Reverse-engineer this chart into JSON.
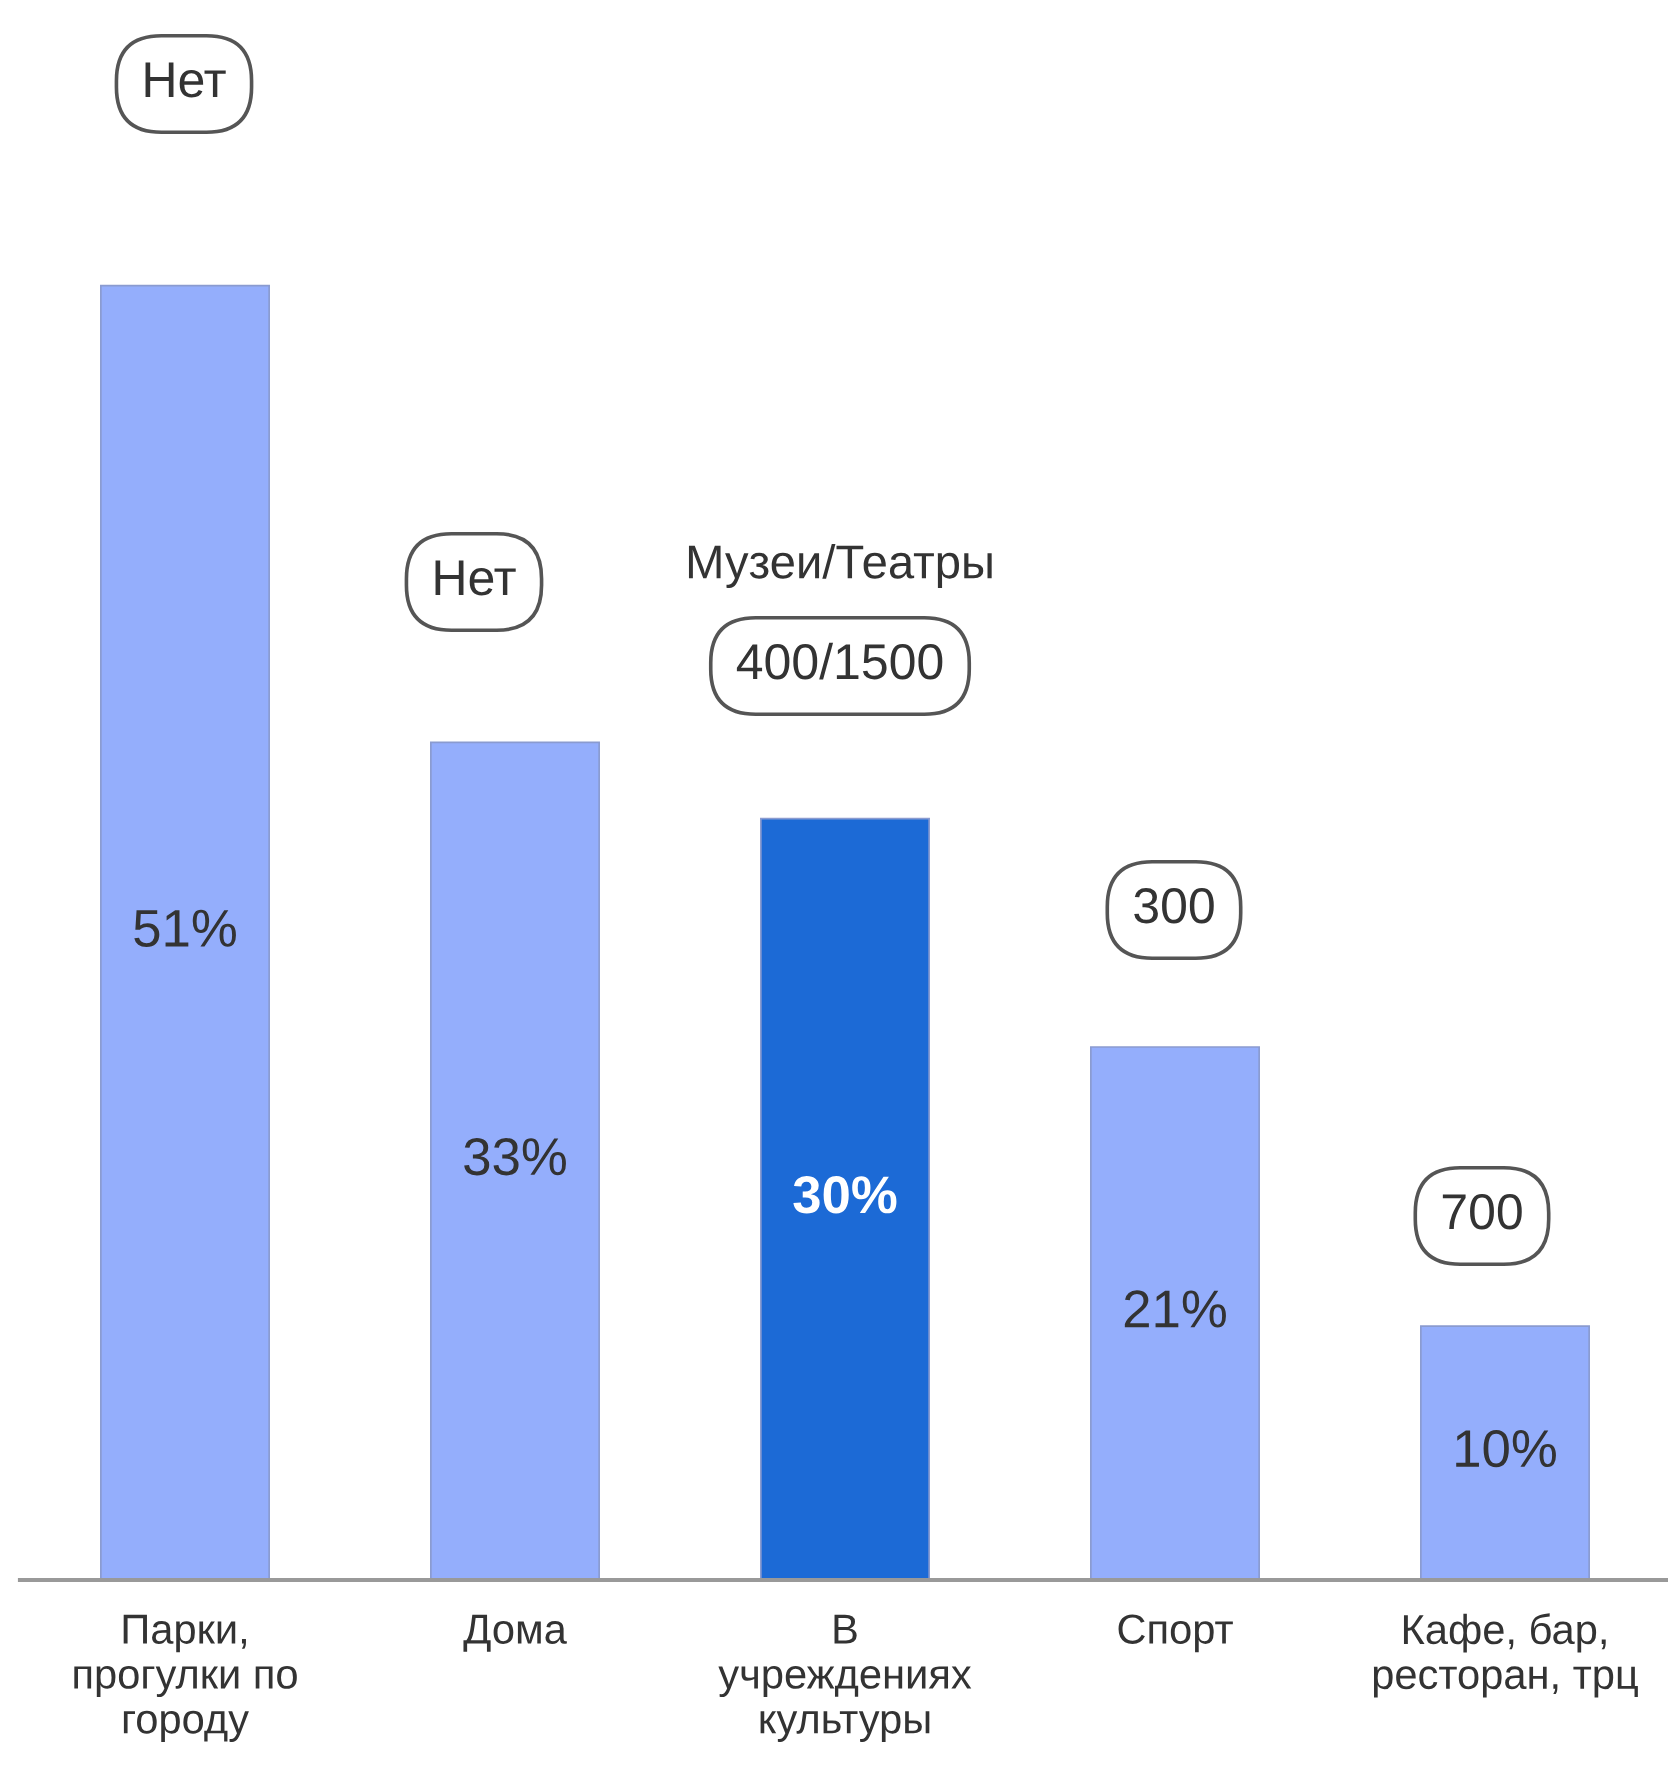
{
  "chart_data": {
    "type": "bar",
    "categories": [
      "Парки,\nпрогулки по\nгороду",
      "Дома",
      "В\nучреждениях\nкультуры",
      "Спорт",
      "Кафе, бар,\nресторан, трц"
    ],
    "values": [
      51,
      33,
      30,
      21,
      10
    ],
    "colors": [
      "#94aefc",
      "#94aefc",
      "#1c6ad6",
      "#94aefc",
      "#94aefc"
    ],
    "value_labels": [
      "51%",
      "33%",
      "30%",
      "21%",
      "10%"
    ],
    "tick_labels": "x",
    "grid": false,
    "annotations": [
      "Нет",
      "Нет",
      "Музеи/Театры",
      "400/1500",
      "300",
      "700"
    ]
  }
}
